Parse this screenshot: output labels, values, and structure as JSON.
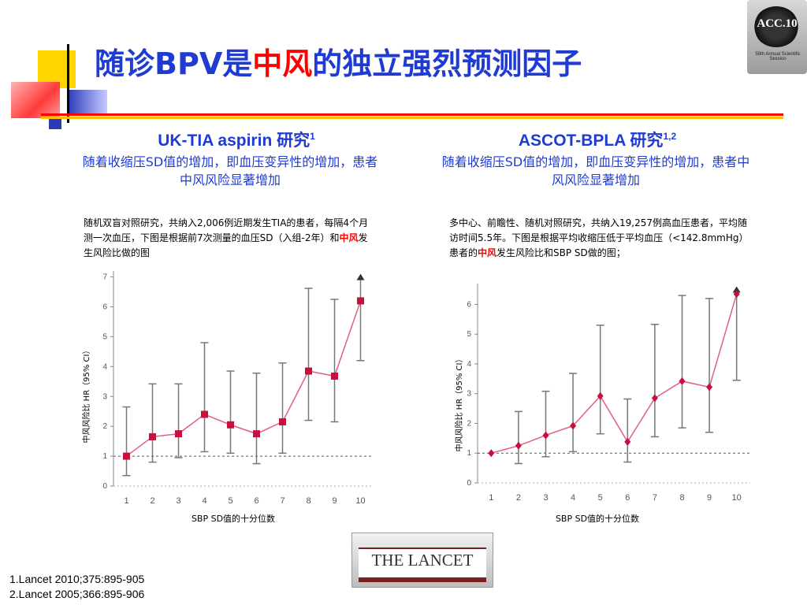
{
  "title": {
    "part1": "随诊BPV是",
    "part2_red": "中风",
    "part3": "的独立强烈预测因子"
  },
  "logo": {
    "text": "ACC.10",
    "subtext": "59th Annual Scientific Session"
  },
  "left": {
    "heading": "UK-TIA aspirin 研究",
    "heading_sup": "1",
    "subheading": "随着收缩压SD值的增加，即血压变异性的增加，患者中风风险显著增加",
    "desc_part1": "随机双盲对照研究，共纳入2,006例近期发生TIA的患者，每隔4个月测一次血压，下图是根据前7次测量的血压SD（入组-2年）和",
    "desc_red": "中风",
    "desc_part2": "发生风险比做的图"
  },
  "right": {
    "heading": "ASCOT-BPLA 研究",
    "heading_sup": "1,2",
    "subheading": "随着收缩压SD值的增加，即血压变异性的增加，患者中风风险显著增加",
    "desc_part1": "多中心、前瞻性、随机对照研究，共纳入19,257例高血压患者，平均随访时间5.5年。下图是根据平均收缩压低于平均血压（<142.8mmHg）患者的",
    "desc_red": "中风",
    "desc_part2": "发生风险比和SBP SD做的图；"
  },
  "publisher": "THE LANCET",
  "references": [
    "1.Lancet  2010;375:895-905",
    "2.Lancet  2005;366:895-906"
  ],
  "colors": {
    "title_blue": "#1f3bd2",
    "accent_red": "#ff0000",
    "left_series": "#c8103e",
    "right_series": "#c8103e",
    "line": "#e0607e",
    "errorbar": "#777777"
  },
  "chart_data": [
    {
      "type": "line",
      "title": "",
      "xlabel": "SBP SD值的十分位数",
      "ylabel": "中风风险比 HR（95% CI）",
      "x": [
        1,
        2,
        3,
        4,
        5,
        6,
        7,
        8,
        9,
        10
      ],
      "series": [
        {
          "marker": "square",
          "values": [
            1.0,
            1.65,
            1.75,
            2.4,
            2.05,
            1.75,
            2.15,
            3.85,
            3.68,
            6.2
          ],
          "ci_low": [
            0.35,
            0.8,
            0.95,
            1.15,
            1.1,
            0.75,
            1.1,
            2.2,
            2.15,
            4.2
          ],
          "ci_high": [
            2.65,
            3.42,
            3.42,
            4.8,
            3.85,
            3.78,
            4.12,
            6.62,
            6.25,
            7.0
          ],
          "ci_high_arrow": [
            false,
            false,
            false,
            false,
            false,
            false,
            false,
            false,
            false,
            true
          ]
        }
      ],
      "xlim": [
        0.5,
        10.5
      ],
      "ylim": [
        0,
        7.2
      ],
      "yticks": [
        0,
        1,
        2,
        3,
        4,
        5,
        6,
        7
      ],
      "reference_line": 1,
      "grid": false
    },
    {
      "type": "line",
      "title": "",
      "xlabel": "SBP SD值的十分位数",
      "ylabel": "中风风险比 HR（95% CI）",
      "x": [
        1,
        2,
        3,
        4,
        5,
        6,
        7,
        8,
        9,
        10
      ],
      "series": [
        {
          "marker": "diamond",
          "values": [
            1.0,
            1.25,
            1.6,
            1.92,
            2.92,
            1.38,
            2.85,
            3.42,
            3.22,
            6.35
          ],
          "ci_low": [
            1.0,
            0.65,
            0.88,
            1.05,
            1.65,
            0.7,
            1.55,
            1.85,
            1.7,
            3.45
          ],
          "ci_high": [
            1.0,
            2.4,
            3.08,
            3.68,
            5.3,
            2.82,
            5.33,
            6.3,
            6.2,
            6.5
          ],
          "ci_high_arrow": [
            false,
            false,
            false,
            false,
            false,
            false,
            false,
            false,
            false,
            true
          ]
        }
      ],
      "xlim": [
        0.5,
        10.5
      ],
      "ylim": [
        0,
        6.7
      ],
      "yticks": [
        0,
        1,
        2,
        3,
        4,
        5,
        6
      ],
      "reference_line": 1,
      "grid": false
    }
  ]
}
